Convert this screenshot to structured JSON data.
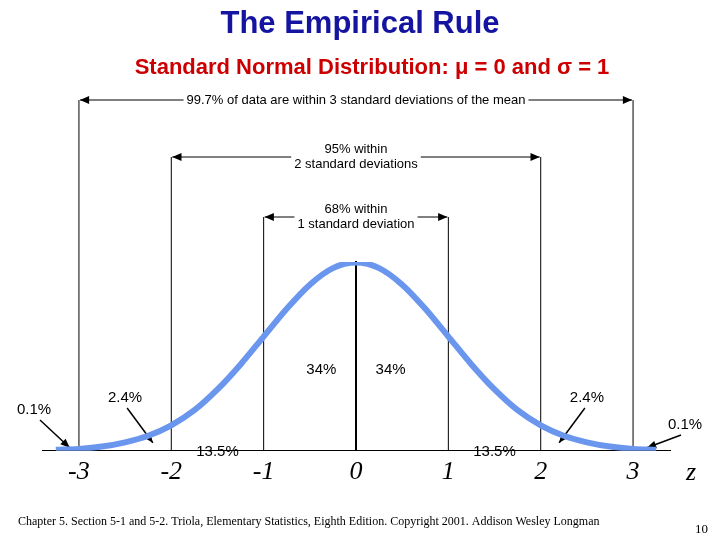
{
  "chart_data": {
    "type": "line",
    "title": "The Empirical Rule",
    "subtitle": "Standard Normal Distribution: μ = 0 and σ = 1",
    "x": [
      -3.25,
      -3,
      -2.75,
      -2.5,
      -2.25,
      -2,
      -1.75,
      -1.5,
      -1.25,
      -1,
      -0.75,
      -0.5,
      -0.25,
      0,
      0.25,
      0.5,
      0.75,
      1,
      1.25,
      1.5,
      1.75,
      2,
      2.25,
      2.5,
      2.75,
      3,
      3.25
    ],
    "values": [
      0.002,
      0.004,
      0.009,
      0.018,
      0.032,
      0.054,
      0.086,
      0.13,
      0.183,
      0.242,
      0.301,
      0.352,
      0.387,
      0.399,
      0.387,
      0.352,
      0.301,
      0.242,
      0.183,
      0.13,
      0.086,
      0.054,
      0.032,
      0.018,
      0.009,
      0.004,
      0.002
    ],
    "color": "#6b96ee",
    "xlabel": "z",
    "xlim": [
      -3.4,
      3.4
    ],
    "xticks": [
      -3,
      -2,
      -1,
      0,
      1,
      2,
      3
    ],
    "ylim": [
      0,
      0.4
    ],
    "tick_labels": "x",
    "grid": false,
    "intervals": [
      {
        "from": -3,
        "to": 3,
        "label": [
          "99.7% of data are within 3 standard deviations of the mean"
        ]
      },
      {
        "from": -2,
        "to": 2,
        "label": [
          "95% within",
          "2 standard deviations"
        ]
      },
      {
        "from": -1,
        "to": 1,
        "label": [
          "68% within",
          "1 standard deviation"
        ]
      }
    ],
    "regions": [
      {
        "from": null,
        "to": -3,
        "value": 0.1,
        "label": "0.1%"
      },
      {
        "from": -3,
        "to": -2,
        "value": 2.4,
        "label": "2.4%"
      },
      {
        "from": -2,
        "to": -1,
        "value": 13.5,
        "label": "13.5%"
      },
      {
        "from": -1,
        "to": 0,
        "value": 34,
        "label": "34%"
      },
      {
        "from": 0,
        "to": 1,
        "value": 34,
        "label": "34%"
      },
      {
        "from": 1,
        "to": 2,
        "value": 13.5,
        "label": "13.5%"
      },
      {
        "from": 2,
        "to": 3,
        "value": 2.4,
        "label": "2.4%"
      },
      {
        "from": 3,
        "to": null,
        "value": 0.1,
        "label": "0.1%"
      }
    ],
    "footer": "Chapter 5. Section 5-1 and 5-2. Triola, Elementary Statistics, Eighth Edition. Copyright 2001. Addison Wesley Longman",
    "page": 10
  }
}
